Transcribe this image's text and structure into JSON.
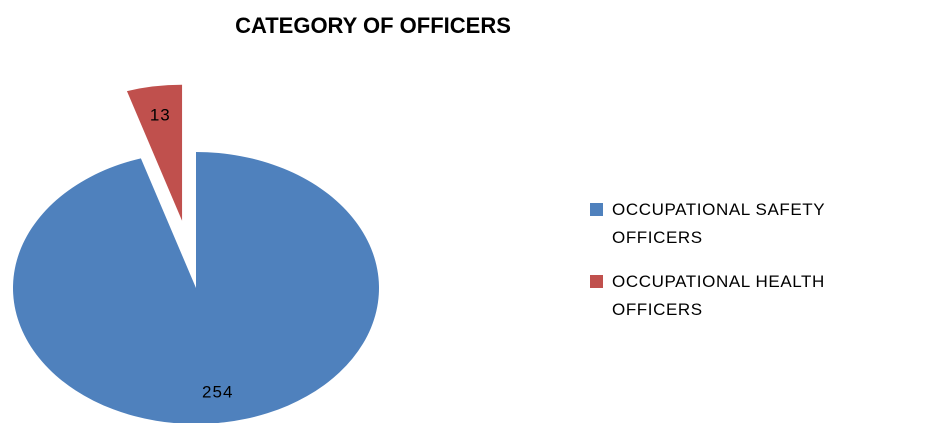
{
  "chart_data": {
    "type": "pie",
    "title": "CATEGORY OF OFFICERS",
    "categories": [
      "OCCUPATIONAL SAFETY OFFICERS",
      "OCCUPATIONAL HEALTH OFFICERS"
    ],
    "values": [
      254,
      13
    ],
    "colors": [
      "#4f81bd",
      "#c0504d"
    ],
    "legend": "right"
  }
}
